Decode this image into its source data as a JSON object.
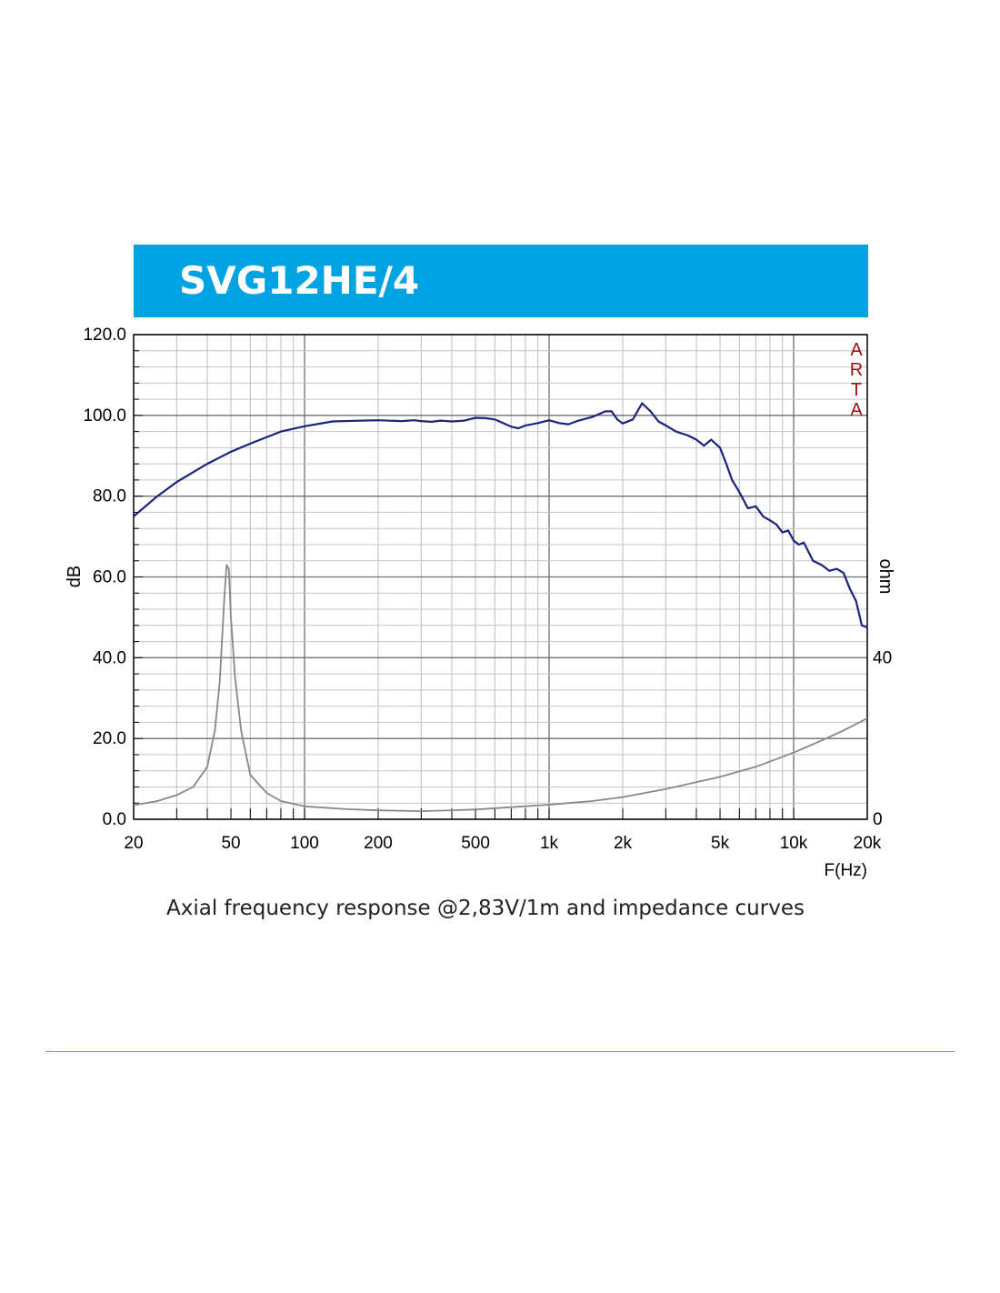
{
  "banner": {
    "title": "SVG12HE/4",
    "color": "#00a3e2"
  },
  "caption": "Axial frequency response @2,83V/1m and impedance curves",
  "chart_data": {
    "type": "line",
    "title": "SVG12HE/4",
    "xlabel": "F(Hz)",
    "ylabel": "dB",
    "y2label": "ohm",
    "watermark": "ARTA",
    "xscale": "log",
    "xlim": [
      20,
      20000
    ],
    "ylim": [
      0,
      120
    ],
    "y2lim": [
      0,
      120
    ],
    "grid": true,
    "x_ticks": [
      20,
      50,
      100,
      200,
      500,
      1000,
      2000,
      5000,
      10000,
      20000
    ],
    "x_tick_labels": [
      "20",
      "50",
      "100",
      "200",
      "500",
      "1k",
      "2k",
      "5k",
      "10k",
      "20k"
    ],
    "y_ticks": [
      0,
      20,
      40,
      60,
      80,
      100,
      120
    ],
    "y_tick_labels": [
      "0.0",
      "20.0",
      "40.0",
      "60.0",
      "80.0",
      "100.0",
      "120.0"
    ],
    "y2_ticks": [
      0,
      40
    ],
    "y2_tick_labels": [
      "0",
      "40"
    ],
    "series": [
      {
        "color": "#1a237e",
        "axis": "left",
        "x": [
          20,
          25,
          30,
          40,
          50,
          60,
          80,
          100,
          130,
          170,
          200,
          250,
          280,
          300,
          330,
          360,
          400,
          450,
          500,
          550,
          600,
          700,
          750,
          800,
          900,
          1000,
          1100,
          1200,
          1300,
          1500,
          1700,
          1800,
          1900,
          2000,
          2200,
          2400,
          2600,
          2800,
          3000,
          3300,
          3700,
          4000,
          4300,
          4600,
          5000,
          5300,
          5600,
          6000,
          6500,
          7000,
          7500,
          8000,
          8500,
          9000,
          9500,
          10000,
          10500,
          11000,
          12000,
          13000,
          14000,
          15000,
          16000,
          17000,
          18000,
          19000,
          20000
        ],
        "y": [
          75,
          80,
          83.5,
          88,
          91,
          93,
          96,
          97.3,
          98.5,
          98.7,
          98.8,
          98.6,
          98.8,
          98.6,
          98.4,
          98.7,
          98.5,
          98.7,
          99.4,
          99.3,
          99,
          97.2,
          96.8,
          97.5,
          98.1,
          98.8,
          98.1,
          97.8,
          98.6,
          99.6,
          101,
          101,
          99,
          98,
          99,
          103,
          101,
          98.5,
          97.5,
          96,
          95,
          94,
          92.5,
          94,
          92,
          88,
          84,
          81,
          77,
          77.5,
          75,
          74,
          73,
          71,
          71.5,
          69,
          68,
          68.5,
          64,
          63,
          61.5,
          62,
          61,
          57,
          54,
          48,
          47.5
        ]
      },
      {
        "color": "#888888",
        "axis": "right",
        "x": [
          20,
          25,
          30,
          35,
          40,
          43,
          45,
          47,
          48,
          49,
          50,
          52,
          55,
          60,
          70,
          80,
          100,
          150,
          200,
          300,
          500,
          700,
          1000,
          1500,
          2000,
          3000,
          5000,
          7000,
          10000,
          13000,
          16000,
          20000
        ],
        "y": [
          3.5,
          4.5,
          6,
          8,
          13,
          22,
          34,
          55,
          63,
          62,
          50,
          35,
          22,
          11,
          6.5,
          4.5,
          3.2,
          2.5,
          2.2,
          2,
          2.4,
          3,
          3.6,
          4.5,
          5.5,
          7.5,
          10.5,
          13,
          16.5,
          19.5,
          22,
          25
        ]
      }
    ]
  }
}
